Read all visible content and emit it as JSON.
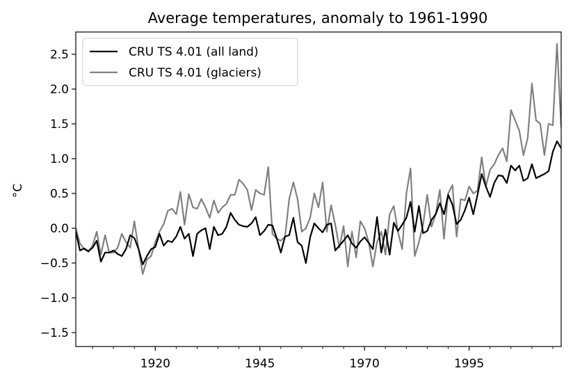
{
  "chart_data": {
    "type": "line",
    "title": "Average temperatures, anomaly to 1961-1990",
    "xlabel": "",
    "ylabel": "°C",
    "xlim": [
      1901,
      2017
    ],
    "ylim": [
      -1.7,
      2.82
    ],
    "x_ticks": [
      1920,
      1945,
      1970,
      1995
    ],
    "x_minor_step": 5,
    "y_ticks": [
      -1.5,
      -1.0,
      -0.5,
      0.0,
      0.5,
      1.0,
      1.5,
      2.0,
      2.5
    ],
    "y_tick_labels": [
      "−1.5",
      "−1.0",
      "−0.5",
      "0.0",
      "0.5",
      "1.0",
      "1.5",
      "2.0",
      "2.5"
    ],
    "x_tick_labels": [
      "1920",
      "1945",
      "1970",
      "1995"
    ],
    "grid": false,
    "legend_position": "top-left",
    "x": [
      1901,
      1902,
      1903,
      1904,
      1905,
      1906,
      1907,
      1908,
      1909,
      1910,
      1911,
      1912,
      1913,
      1914,
      1915,
      1916,
      1917,
      1918,
      1919,
      1920,
      1921,
      1922,
      1923,
      1924,
      1925,
      1926,
      1927,
      1928,
      1929,
      1930,
      1931,
      1932,
      1933,
      1934,
      1935,
      1936,
      1937,
      1938,
      1939,
      1940,
      1941,
      1942,
      1943,
      1944,
      1945,
      1946,
      1947,
      1948,
      1949,
      1950,
      1951,
      1952,
      1953,
      1954,
      1955,
      1956,
      1957,
      1958,
      1959,
      1960,
      1961,
      1962,
      1963,
      1964,
      1965,
      1966,
      1967,
      1968,
      1969,
      1970,
      1971,
      1972,
      1973,
      1974,
      1975,
      1976,
      1977,
      1978,
      1979,
      1980,
      1981,
      1982,
      1983,
      1984,
      1985,
      1986,
      1987,
      1988,
      1989,
      1990,
      1991,
      1992,
      1993,
      1994,
      1995,
      1996,
      1997,
      1998,
      1999,
      2000,
      2001,
      2002,
      2003,
      2004,
      2005,
      2006,
      2007,
      2008,
      2009,
      2010,
      2011,
      2012,
      2013,
      2014,
      2015,
      2016,
      2017
    ],
    "series": [
      {
        "name": "CRU TS 4.01 (all land)",
        "color": "#000000",
        "values": [
          -0.05,
          -0.32,
          -0.29,
          -0.33,
          -0.28,
          -0.18,
          -0.48,
          -0.35,
          -0.35,
          -0.32,
          -0.37,
          -0.4,
          -0.3,
          -0.1,
          -0.14,
          -0.3,
          -0.52,
          -0.4,
          -0.3,
          -0.27,
          -0.08,
          -0.25,
          -0.18,
          -0.2,
          -0.12,
          0.02,
          -0.15,
          -0.08,
          -0.4,
          -0.08,
          -0.03,
          0.0,
          -0.3,
          0.02,
          -0.1,
          -0.08,
          0.02,
          0.22,
          0.12,
          0.05,
          0.03,
          0.02,
          0.07,
          0.16,
          -0.1,
          -0.04,
          0.05,
          0.04,
          -0.14,
          -0.35,
          -0.12,
          -0.1,
          0.15,
          -0.2,
          -0.25,
          -0.5,
          -0.13,
          0.07,
          0.0,
          -0.06,
          0.05,
          0.07,
          -0.32,
          -0.25,
          -0.18,
          -0.1,
          -0.22,
          -0.28,
          -0.19,
          -0.13,
          -0.21,
          -0.3,
          0.16,
          -0.35,
          -0.02,
          -0.38,
          0.08,
          -0.04,
          0.05,
          0.15,
          0.38,
          -0.05,
          0.32,
          -0.07,
          -0.04,
          0.12,
          0.2,
          0.36,
          0.2,
          0.48,
          0.34,
          0.06,
          0.12,
          0.26,
          0.44,
          0.2,
          0.48,
          0.78,
          0.6,
          0.45,
          0.65,
          0.76,
          0.75,
          0.65,
          0.9,
          0.83,
          0.9,
          0.68,
          0.72,
          0.92,
          0.72,
          0.75,
          0.78,
          0.82,
          1.1,
          1.25,
          1.15
        ]
      },
      {
        "name": "CRU TS 4.01 (glaciers)",
        "color": "#808080",
        "values": [
          0.0,
          -0.22,
          -0.3,
          -0.34,
          -0.25,
          -0.05,
          -0.38,
          -0.1,
          -0.35,
          -0.35,
          -0.28,
          -0.08,
          -0.2,
          -0.28,
          0.1,
          -0.3,
          -0.66,
          -0.45,
          -0.4,
          -0.2,
          -0.05,
          0.06,
          0.25,
          0.28,
          0.2,
          0.52,
          0.05,
          0.49,
          0.3,
          0.28,
          0.42,
          0.3,
          0.15,
          0.4,
          0.22,
          0.3,
          0.35,
          0.48,
          0.48,
          0.7,
          0.64,
          0.55,
          0.26,
          0.55,
          0.5,
          0.48,
          0.88,
          -0.08,
          -0.15,
          -0.18,
          -0.12,
          0.42,
          0.66,
          0.42,
          -0.05,
          0.0,
          0.15,
          0.5,
          0.3,
          0.66,
          -0.05,
          0.33,
          0.05,
          -0.28,
          0.03,
          -0.55,
          -0.05,
          -0.42,
          0.1,
          0.0,
          -0.2,
          -0.55,
          -0.2,
          -0.05,
          -0.38,
          0.2,
          0.32,
          -0.05,
          -0.3,
          0.5,
          0.86,
          -0.4,
          -0.2,
          0.05,
          0.48,
          0.02,
          0.2,
          0.55,
          -0.15,
          0.5,
          0.62,
          -0.12,
          0.42,
          0.4,
          0.6,
          0.5,
          0.54,
          1.02,
          0.6,
          0.84,
          0.92,
          1.05,
          1.15,
          0.96,
          1.7,
          1.55,
          1.4,
          1.05,
          1.3,
          2.08,
          1.55,
          1.5,
          1.05,
          1.5,
          1.48,
          2.65,
          1.45
        ]
      }
    ]
  }
}
